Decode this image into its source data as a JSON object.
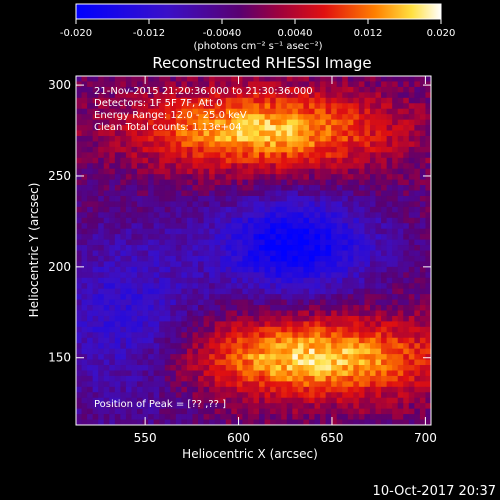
{
  "chart_data": {
    "type": "heatmap",
    "title": "Reconstructed RHESSI Image",
    "xlabel": "Heliocentric X (arcsec)",
    "ylabel": "Heliocentric Y (arcsec)",
    "xlim": [
      513,
      703
    ],
    "ylim": [
      113,
      305
    ],
    "x_ticks": [
      550,
      600,
      650,
      700
    ],
    "y_ticks": [
      150,
      200,
      250,
      300
    ],
    "colorbar": {
      "min": -0.02,
      "max": 0.02,
      "tick_values": [
        -0.02,
        -0.012,
        -0.004,
        0.004,
        0.012,
        0.02
      ],
      "tick_labels": [
        "-0.020",
        "-0.012",
        "-0.0040",
        "0.0040",
        "0.012",
        "0.020"
      ],
      "unit_label": "(photons cm⁻² s⁻¹ asec⁻²)"
    },
    "annotations": [
      "21-Nov-2015 21:20:36.000 to 21:30:36.000",
      "Detectors: 1F 5F 7F, Att 0",
      "Energy Range: 12.0 - 25.0 keV",
      "Clean    Total counts: 1.13e+04",
      "Position of Peak = [?? ,?? ]"
    ],
    "pixel_grid": {
      "nx": 64,
      "ny": 64
    },
    "field_features": [
      {
        "kind": "bright-ridge",
        "x_center": 612,
        "y_center": 275,
        "value": 0.018
      },
      {
        "kind": "bright-ridge",
        "x_center": 640,
        "y_center": 150,
        "value": 0.019
      },
      {
        "kind": "negative-hole",
        "x_center": 630,
        "y_center": 212,
        "value": -0.018
      },
      {
        "kind": "dim-region",
        "x_center": 540,
        "y_center": 170,
        "value": -0.01
      }
    ]
  },
  "footer": {
    "timestamp": "10-Oct-2017 20:37"
  }
}
